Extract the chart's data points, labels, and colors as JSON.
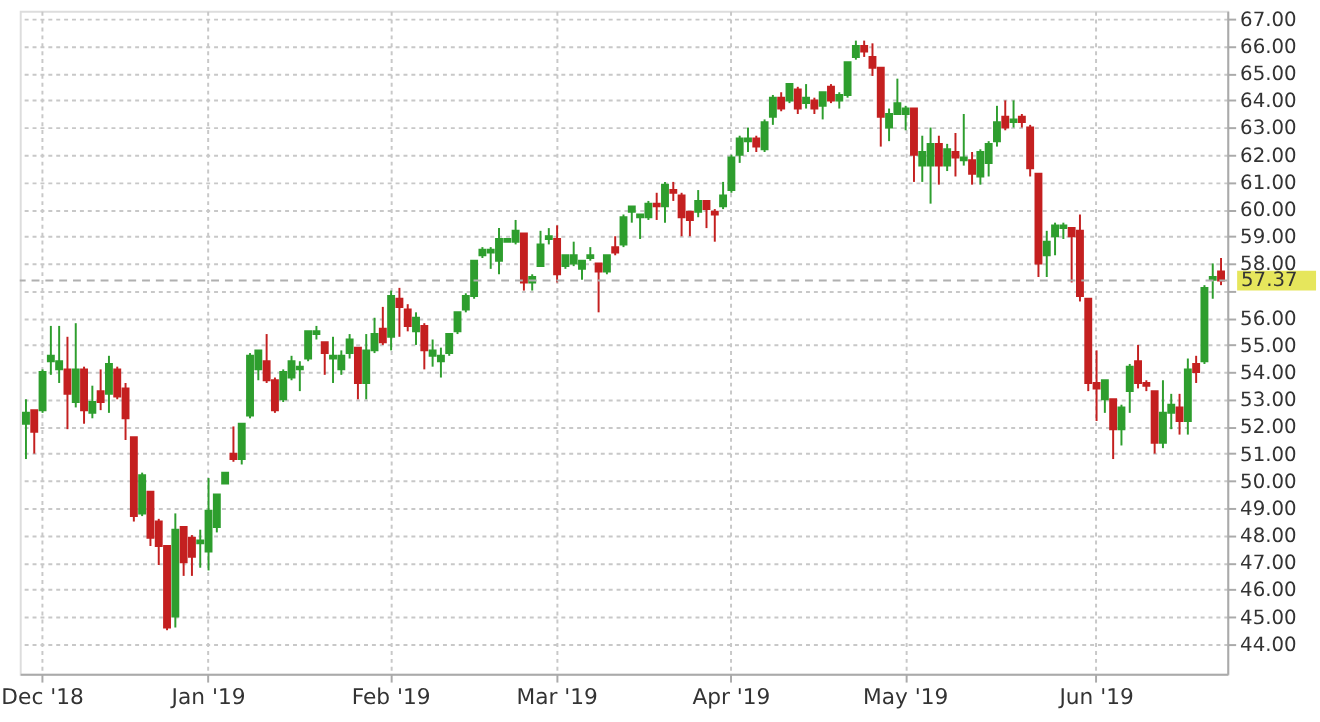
{
  "chart_data": {
    "type": "candlestick",
    "categories": [
      null,
      null,
      "Dec '18",
      null,
      null,
      null,
      null,
      null,
      null,
      null,
      null,
      null,
      null,
      null,
      null,
      null,
      null,
      null,
      null,
      null,
      null,
      null,
      "Jan '19",
      null,
      null,
      null,
      null,
      null,
      null,
      null,
      null,
      null,
      null,
      null,
      null,
      null,
      null,
      null,
      null,
      null,
      null,
      null,
      null,
      null,
      "Feb '19",
      null,
      null,
      null,
      null,
      null,
      null,
      null,
      null,
      null,
      null,
      null,
      null,
      null,
      null,
      null,
      null,
      null,
      null,
      null,
      "Mar '19",
      null,
      null,
      null,
      null,
      null,
      null,
      null,
      null,
      null,
      null,
      null,
      null,
      null,
      null,
      null,
      null,
      null,
      null,
      null,
      null,
      "Apr '19",
      null,
      null,
      null,
      null,
      null,
      null,
      null,
      null,
      null,
      null,
      null,
      null,
      null,
      null,
      null,
      null,
      null,
      null,
      null,
      null,
      "May '19",
      null,
      null,
      null,
      null,
      null,
      null,
      null,
      null,
      null,
      null,
      null,
      null,
      null,
      null,
      null,
      null,
      null,
      null,
      null,
      null,
      null,
      null,
      "Jun '19",
      null,
      null,
      null,
      null,
      null,
      null,
      null,
      null,
      null,
      null,
      null,
      null,
      null,
      null,
      null
    ],
    "ohlc": [
      [
        52.1,
        53.0,
        50.8,
        52.5
      ],
      [
        52.6,
        52.6,
        51.0,
        51.8
      ],
      [
        52.6,
        54.1,
        52.5,
        54.0
      ],
      [
        54.4,
        55.7,
        53.9,
        54.6
      ],
      [
        54.1,
        55.7,
        53.6,
        54.4
      ],
      [
        54.1,
        55.3,
        51.9,
        53.2
      ],
      [
        52.9,
        55.8,
        52.7,
        54.1
      ],
      [
        54.1,
        54.2,
        52.1,
        52.6
      ],
      [
        52.5,
        53.5,
        52.3,
        52.9
      ],
      [
        53.3,
        54.1,
        52.6,
        52.9
      ],
      [
        53.2,
        54.6,
        52.5,
        54.3
      ],
      [
        54.1,
        54.2,
        53.0,
        53.1
      ],
      [
        53.4,
        53.6,
        51.5,
        52.3
      ],
      [
        51.6,
        51.6,
        48.5,
        48.7
      ],
      [
        48.8,
        50.3,
        48.7,
        50.2
      ],
      [
        49.6,
        49.6,
        47.6,
        47.9
      ],
      [
        48.5,
        48.6,
        46.9,
        47.6
      ],
      [
        47.6,
        47.6,
        44.5,
        44.6
      ],
      [
        45.0,
        48.8,
        44.6,
        48.2
      ],
      [
        48.3,
        48.3,
        46.5,
        47.0
      ],
      [
        47.9,
        48.0,
        46.5,
        47.2
      ],
      [
        47.7,
        48.2,
        46.8,
        47.8
      ],
      [
        47.4,
        50.1,
        46.7,
        48.9
      ],
      [
        48.3,
        49.5,
        48.1,
        49.5
      ],
      [
        49.9,
        50.3,
        49.9,
        50.3
      ],
      [
        51.0,
        52.0,
        50.7,
        50.8
      ],
      [
        50.8,
        52.1,
        50.6,
        52.1
      ],
      [
        52.4,
        54.7,
        52.3,
        54.6
      ],
      [
        54.1,
        54.8,
        53.7,
        54.8
      ],
      [
        54.4,
        55.4,
        53.6,
        53.7
      ],
      [
        53.7,
        53.8,
        52.5,
        52.6
      ],
      [
        53.0,
        54.1,
        52.9,
        54.0
      ],
      [
        53.8,
        54.6,
        53.7,
        54.4
      ],
      [
        54.1,
        54.4,
        53.3,
        54.2
      ],
      [
        54.5,
        55.5,
        54.4,
        55.5
      ],
      [
        55.4,
        55.7,
        55.2,
        55.5
      ],
      [
        55.1,
        55.1,
        53.9,
        54.7
      ],
      [
        54.5,
        55.3,
        53.6,
        54.6
      ],
      [
        54.1,
        54.8,
        53.9,
        54.6
      ],
      [
        54.7,
        55.4,
        54.5,
        55.2
      ],
      [
        54.9,
        54.9,
        53.0,
        53.6
      ],
      [
        53.6,
        55.4,
        53.0,
        54.8
      ],
      [
        54.8,
        56.0,
        54.7,
        55.4
      ],
      [
        55.6,
        56.4,
        55.0,
        55.1
      ],
      [
        55.3,
        57.0,
        54.8,
        56.8
      ],
      [
        56.7,
        57.1,
        55.3,
        56.4
      ],
      [
        56.3,
        56.5,
        55.5,
        55.7
      ],
      [
        55.5,
        56.2,
        55.0,
        56.0
      ],
      [
        55.7,
        55.8,
        54.1,
        54.8
      ],
      [
        54.6,
        55.2,
        54.2,
        54.8
      ],
      [
        54.4,
        54.9,
        53.8,
        54.6
      ],
      [
        54.7,
        55.4,
        54.6,
        55.4
      ],
      [
        55.5,
        56.2,
        55.4,
        56.2
      ],
      [
        56.3,
        56.9,
        56.2,
        56.8
      ],
      [
        56.8,
        58.1,
        56.7,
        58.1
      ],
      [
        58.3,
        58.6,
        58.2,
        58.5
      ],
      [
        58.4,
        58.6,
        57.8,
        58.5
      ],
      [
        58.1,
        59.3,
        57.6,
        58.9
      ],
      [
        58.8,
        58.9,
        58.8,
        58.9
      ],
      [
        58.8,
        59.6,
        58.7,
        59.2
      ],
      [
        59.1,
        59.1,
        57.0,
        57.3
      ],
      [
        57.3,
        57.6,
        57.0,
        57.5
      ],
      [
        57.9,
        59.2,
        57.9,
        58.7
      ],
      [
        58.9,
        59.3,
        58.7,
        59.0
      ],
      [
        58.9,
        59.4,
        57.3,
        57.6
      ],
      [
        57.9,
        58.3,
        57.8,
        58.3
      ],
      [
        58.0,
        58.8,
        57.9,
        58.3
      ],
      [
        57.8,
        58.1,
        57.4,
        58.1
      ],
      [
        58.2,
        58.6,
        58.1,
        58.3
      ],
      [
        58.0,
        58.0,
        56.2,
        57.7
      ],
      [
        57.7,
        58.3,
        57.6,
        58.3
      ],
      [
        58.6,
        59.0,
        58.3,
        58.4
      ],
      [
        58.7,
        59.8,
        58.6,
        59.7
      ],
      [
        59.9,
        60.1,
        59.5,
        60.1
      ],
      [
        59.7,
        59.8,
        58.9,
        59.8
      ],
      [
        59.7,
        60.3,
        59.6,
        60.2
      ],
      [
        60.2,
        60.6,
        59.6,
        60.1
      ],
      [
        60.1,
        61.0,
        59.5,
        60.9
      ],
      [
        60.7,
        61.0,
        60.3,
        60.6
      ],
      [
        60.5,
        60.6,
        59.0,
        59.7
      ],
      [
        59.9,
        59.9,
        59.0,
        59.6
      ],
      [
        59.9,
        60.7,
        59.7,
        60.3
      ],
      [
        60.3,
        60.3,
        59.3,
        60.0
      ],
      [
        59.9,
        60.0,
        58.8,
        59.8
      ],
      [
        60.1,
        61.0,
        60.0,
        60.5
      ],
      [
        60.7,
        62.0,
        60.6,
        61.9
      ],
      [
        62.0,
        62.7,
        61.7,
        62.6
      ],
      [
        62.5,
        63.0,
        62.1,
        62.6
      ],
      [
        62.6,
        62.7,
        62.1,
        62.3
      ],
      [
        62.2,
        63.3,
        62.1,
        63.2
      ],
      [
        63.4,
        64.2,
        63.1,
        64.1
      ],
      [
        64.1,
        64.3,
        63.6,
        63.7
      ],
      [
        64.0,
        64.6,
        63.9,
        64.6
      ],
      [
        64.4,
        64.5,
        63.5,
        63.7
      ],
      [
        63.9,
        64.6,
        63.7,
        64.1
      ],
      [
        64.0,
        64.1,
        63.5,
        63.7
      ],
      [
        63.8,
        64.3,
        63.3,
        64.3
      ],
      [
        64.5,
        64.6,
        63.9,
        64.0
      ],
      [
        64.0,
        64.3,
        63.7,
        64.2
      ],
      [
        64.2,
        65.4,
        64.1,
        65.4
      ],
      [
        65.6,
        66.2,
        65.5,
        66.0
      ],
      [
        66.0,
        66.2,
        65.6,
        65.8
      ],
      [
        65.6,
        66.1,
        64.9,
        65.2
      ],
      [
        65.2,
        65.2,
        62.3,
        63.4
      ],
      [
        63.0,
        63.7,
        62.5,
        63.5
      ],
      [
        63.5,
        64.8,
        63.5,
        63.9
      ],
      [
        63.5,
        63.8,
        62.9,
        63.7
      ],
      [
        63.7,
        63.7,
        61.0,
        62.0
      ],
      [
        61.6,
        62.7,
        61.0,
        62.1
      ],
      [
        61.6,
        63.0,
        60.2,
        62.4
      ],
      [
        62.4,
        62.7,
        60.9,
        61.6
      ],
      [
        61.6,
        62.4,
        61.4,
        62.2
      ],
      [
        62.1,
        62.8,
        61.2,
        61.9
      ],
      [
        61.8,
        63.5,
        61.6,
        61.9
      ],
      [
        61.8,
        62.1,
        60.9,
        61.3
      ],
      [
        61.2,
        62.2,
        60.9,
        62.1
      ],
      [
        61.7,
        62.5,
        61.2,
        62.4
      ],
      [
        62.5,
        63.8,
        62.3,
        63.2
      ],
      [
        63.4,
        64.0,
        62.9,
        63.0
      ],
      [
        63.2,
        64.0,
        63.0,
        63.3
      ],
      [
        63.4,
        63.5,
        63.0,
        63.2
      ],
      [
        63.0,
        63.1,
        61.2,
        61.5
      ],
      [
        61.3,
        61.3,
        57.5,
        58.0
      ],
      [
        58.3,
        59.2,
        57.5,
        58.8
      ],
      [
        59.0,
        59.5,
        58.3,
        59.4
      ],
      [
        59.3,
        59.5,
        58.9,
        59.4
      ],
      [
        59.3,
        59.3,
        57.3,
        59.0
      ],
      [
        59.2,
        59.8,
        56.6,
        56.8
      ],
      [
        56.7,
        56.7,
        53.3,
        53.6
      ],
      [
        53.6,
        54.8,
        52.2,
        53.4
      ],
      [
        53.0,
        53.7,
        52.5,
        53.7
      ],
      [
        53.0,
        53.0,
        50.8,
        51.9
      ],
      [
        51.9,
        52.8,
        51.3,
        52.7
      ],
      [
        53.3,
        54.3,
        52.5,
        54.2
      ],
      [
        54.4,
        55.0,
        53.4,
        53.6
      ],
      [
        53.6,
        53.7,
        53.3,
        53.5
      ],
      [
        53.3,
        53.3,
        51.0,
        51.4
      ],
      [
        51.4,
        53.7,
        51.2,
        52.5
      ],
      [
        52.5,
        53.2,
        51.9,
        52.8
      ],
      [
        52.7,
        53.2,
        51.7,
        52.2
      ],
      [
        52.2,
        54.5,
        51.7,
        54.1
      ],
      [
        54.3,
        54.6,
        53.6,
        54.0
      ],
      [
        54.4,
        57.2,
        54.3,
        57.1
      ],
      [
        57.4,
        58.0,
        56.7,
        57.5
      ],
      [
        57.7,
        58.2,
        57.2,
        57.37
      ]
    ],
    "colors": [
      "#2e9e2e",
      "#c42020",
      "#2e9e2e",
      "#2e9e2e",
      "#2e9e2e",
      "#c42020",
      "#2e9e2e",
      "#c42020",
      "#2e9e2e",
      "#c42020",
      "#2e9e2e",
      "#c42020",
      "#c42020",
      "#c42020",
      "#2e9e2e",
      "#c42020",
      "#c42020",
      "#c42020",
      "#2e9e2e",
      "#c42020",
      "#c42020",
      "#2e9e2e",
      "#2e9e2e",
      "#2e9e2e",
      "#2e9e2e",
      "#c42020",
      "#2e9e2e",
      "#2e9e2e",
      "#2e9e2e",
      "#c42020",
      "#c42020",
      "#2e9e2e",
      "#2e9e2e",
      "#2e9e2e",
      "#2e9e2e",
      "#2e9e2e",
      "#c42020",
      "#2e9e2e",
      "#2e9e2e",
      "#2e9e2e",
      "#c42020",
      "#2e9e2e",
      "#2e9e2e",
      "#c42020",
      "#2e9e2e",
      "#c42020",
      "#c42020",
      "#2e9e2e",
      "#c42020",
      "#2e9e2e",
      "#2e9e2e",
      "#2e9e2e",
      "#2e9e2e",
      "#2e9e2e",
      "#2e9e2e",
      "#2e9e2e",
      "#2e9e2e",
      "#2e9e2e",
      "#2e9e2e",
      "#2e9e2e",
      "#c42020",
      "#2e9e2e",
      "#2e9e2e",
      "#2e9e2e",
      "#c42020",
      "#2e9e2e",
      "#2e9e2e",
      "#2e9e2e",
      "#2e9e2e",
      "#c42020",
      "#2e9e2e",
      "#c42020",
      "#2e9e2e",
      "#2e9e2e",
      "#2e9e2e",
      "#2e9e2e",
      "#c42020",
      "#2e9e2e",
      "#c42020",
      "#c42020",
      "#c42020",
      "#2e9e2e",
      "#c42020",
      "#c42020",
      "#2e9e2e",
      "#2e9e2e",
      "#2e9e2e",
      "#2e9e2e",
      "#c42020",
      "#2e9e2e",
      "#2e9e2e",
      "#c42020",
      "#2e9e2e",
      "#c42020",
      "#2e9e2e",
      "#c42020",
      "#2e9e2e",
      "#c42020",
      "#2e9e2e",
      "#2e9e2e",
      "#2e9e2e",
      "#c42020",
      "#c42020",
      "#c42020",
      "#2e9e2e",
      "#2e9e2e",
      "#2e9e2e",
      "#c42020",
      "#2e9e2e",
      "#2e9e2e",
      "#c42020",
      "#2e9e2e",
      "#c42020",
      "#2e9e2e",
      "#c42020",
      "#2e9e2e",
      "#2e9e2e",
      "#2e9e2e",
      "#c42020",
      "#2e9e2e",
      "#c42020",
      "#c42020",
      "#c42020",
      "#2e9e2e",
      "#2e9e2e",
      "#2e9e2e",
      "#c42020",
      "#c42020",
      "#c42020",
      "#c42020",
      "#2e9e2e",
      "#c42020",
      "#2e9e2e",
      "#2e9e2e",
      "#c42020",
      "#c42020",
      "#c42020",
      "#2e9e2e",
      "#2e9e2e",
      "#c42020",
      "#2e9e2e",
      "#c42020",
      "#2e9e2e",
      "#2e9e2e",
      "#c42020"
    ],
    "ylim": [
      42.9,
      67.3
    ],
    "yticks": [
      {
        "value": 44,
        "label": "44.00"
      },
      {
        "value": 45,
        "label": "45.00"
      },
      {
        "value": 46,
        "label": "46.00"
      },
      {
        "value": 47,
        "label": "47.00"
      },
      {
        "value": 48,
        "label": "48.00"
      },
      {
        "value": 49,
        "label": "49.00"
      },
      {
        "value": 50,
        "label": "50.00"
      },
      {
        "value": 51,
        "label": "51.00"
      },
      {
        "value": 52,
        "label": "52.00"
      },
      {
        "value": 53,
        "label": "53.00"
      },
      {
        "value": 54,
        "label": "54.00"
      },
      {
        "value": 55,
        "label": "55.00"
      },
      {
        "value": 56,
        "label": "56.00"
      },
      {
        "value": 57,
        "label": null
      },
      {
        "value": 58,
        "label": "58.00"
      },
      {
        "value": 59,
        "label": "59.00"
      },
      {
        "value": 60,
        "label": "60.00"
      },
      {
        "value": 61,
        "label": "61.00"
      },
      {
        "value": 62,
        "label": "62.00"
      },
      {
        "value": 63,
        "label": "63.00"
      },
      {
        "value": 64,
        "label": "64.00"
      },
      {
        "value": 65,
        "label": "65.00"
      },
      {
        "value": 66,
        "label": "66.00"
      },
      {
        "value": 67,
        "label": "67.00"
      }
    ],
    "ref_lines": [
      {
        "axis": "y",
        "value": 57.37,
        "label": "57.37",
        "color": "#b0b0b0",
        "line_style": "dashed"
      }
    ],
    "grid": true
  }
}
